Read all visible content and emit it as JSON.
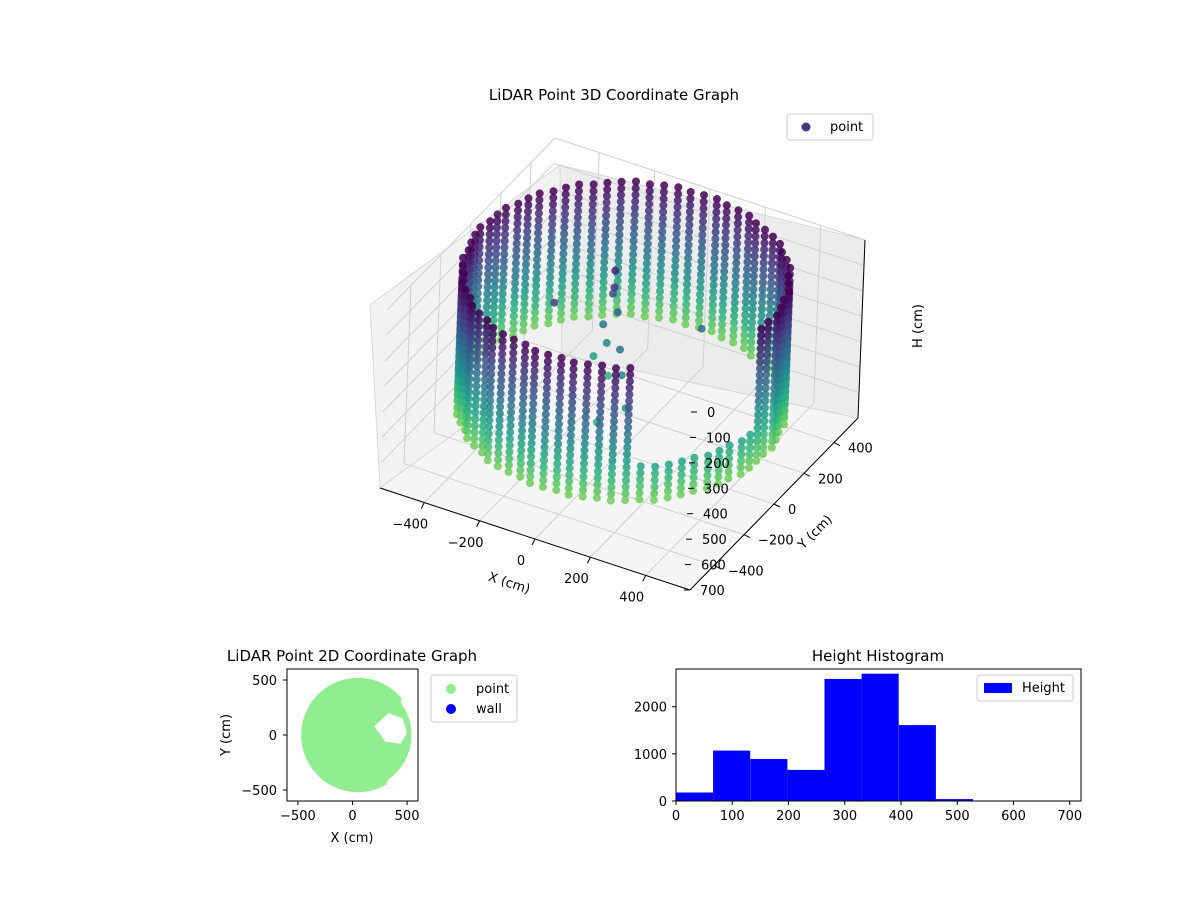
{
  "figure": {
    "title_3d": "LiDAR Point 3D Coordinate Graph",
    "title_2d": "LiDAR Point 2D Coordinate Graph",
    "title_hist": "Height Histogram"
  },
  "chart_data": [
    {
      "type": "scatter",
      "title": "LiDAR Point 3D Coordinate Graph",
      "projection": "3d",
      "xlabel": "X (cm)",
      "ylabel": "Y (cm)",
      "zlabel": "H (cm)",
      "x_ticks": [
        "−400",
        "−200",
        "0",
        "200",
        "400"
      ],
      "y_ticks": [
        "400",
        "200",
        "0",
        "−200",
        "−400"
      ],
      "z_ticks": [
        "0",
        "100",
        "200",
        "300",
        "400",
        "500",
        "600",
        "700"
      ],
      "xlim": [
        -560,
        560
      ],
      "ylim": [
        -560,
        560
      ],
      "zlim": [
        0,
        700
      ],
      "z_inverted": true,
      "colormap": "viridis",
      "legend": [
        "point"
      ],
      "legend_position": "top-right",
      "series": [
        {
          "name": "point",
          "shape": "cylindrical wall of radius ~520 cm, heights 0-520 cm, open toward +X/-Y",
          "radius": 520,
          "height_range": [
            0,
            520
          ],
          "gap_angle_deg": [
            -60,
            -5
          ]
        }
      ]
    },
    {
      "type": "scatter",
      "title": "LiDAR Point 2D Coordinate Graph",
      "xlabel": "X (cm)",
      "ylabel": "Y (cm)",
      "x_ticks": [
        "−500",
        "0",
        "500"
      ],
      "y_ticks": [
        "500",
        "0",
        "−500"
      ],
      "xlim": [
        -600,
        600
      ],
      "ylim": [
        -600,
        600
      ],
      "legend": [
        "point",
        "wall"
      ],
      "legend_position": "outside-right",
      "colors": {
        "point": "#90ee90",
        "wall": "#0000ff"
      },
      "series": [
        {
          "name": "point",
          "shape": "filled disc radius ~520 cm centered near (50, 0) with notch on right at y 0..150"
        },
        {
          "name": "wall",
          "shape": "no visible points"
        }
      ]
    },
    {
      "type": "bar",
      "title": "Height Histogram",
      "legend": [
        "Height"
      ],
      "legend_position": "top-right",
      "color": "#0000ff",
      "xlim": [
        0,
        720
      ],
      "ylim": [
        0,
        2800
      ],
      "x_ticks": [
        "0",
        "100",
        "200",
        "300",
        "400",
        "500",
        "600",
        "700"
      ],
      "y_ticks": [
        "0",
        "1000",
        "2000"
      ],
      "bin_edges": [
        0,
        66,
        132,
        198,
        264,
        330,
        396,
        462,
        528,
        594,
        660,
        726
      ],
      "values": [
        180,
        1070,
        890,
        660,
        2590,
        2700,
        1610,
        40,
        0,
        0,
        0
      ]
    }
  ]
}
